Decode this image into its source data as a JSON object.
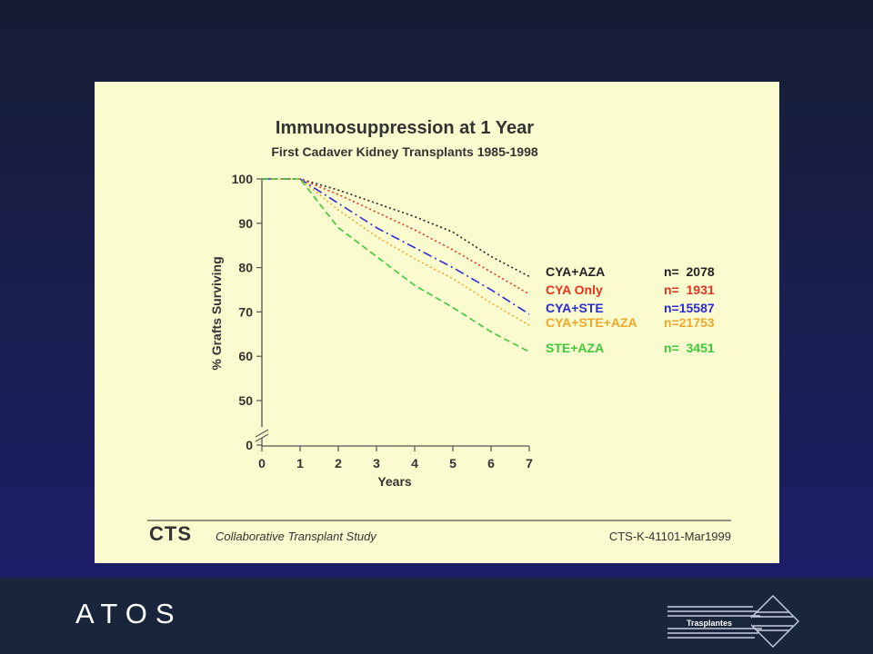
{
  "slide": {
    "brand": "ATOS",
    "logo_text": "Trasplantes"
  },
  "colors": {
    "panel": "#fbfbd0",
    "footer": "#18253a",
    "text": "#333333"
  },
  "chart_data": {
    "type": "line",
    "title": "Immunosuppression at 1 Year",
    "subtitle": "First Cadaver Kidney Transplants 1985-1998",
    "xlabel": "Years",
    "ylabel": "% Grafts Surviving",
    "x_ticks": [
      "0",
      "1",
      "2",
      "3",
      "4",
      "5",
      "6",
      "7"
    ],
    "y_ticks": [
      "0",
      "50",
      "60",
      "70",
      "80",
      "90",
      "100"
    ],
    "xlim": [
      0,
      7
    ],
    "ylim": [
      50,
      100
    ],
    "y_axis_break": true,
    "grid": false,
    "legend_position": "right",
    "x": [
      0,
      1,
      2,
      3,
      4,
      5,
      6,
      7
    ],
    "series": [
      {
        "name": "CYA+AZA",
        "n_label": "n=  2078",
        "color": "#222222",
        "dash": "2,3",
        "values": [
          100,
          100,
          97.5,
          94.5,
          91.5,
          88,
          82.5,
          78
        ]
      },
      {
        "name": "CYA Only",
        "n_label": "n=  1931",
        "color": "#e8321e",
        "dash": "2,3",
        "values": [
          100,
          100,
          96.5,
          92.5,
          88.5,
          84,
          79,
          74
        ]
      },
      {
        "name": "CYA+STE",
        "n_label": "n=15587",
        "color": "#2b2bd6",
        "dash": "10,4,2,4",
        "values": [
          100,
          100,
          94.5,
          89,
          84.5,
          80,
          75,
          69.5
        ]
      },
      {
        "name": "CYA+STE+AZA",
        "n_label": "n=21753",
        "color": "#f0a82a",
        "dash": "2,3",
        "values": [
          100,
          100,
          93,
          87,
          82,
          77.5,
          72,
          67
        ]
      },
      {
        "name": "STE+AZA",
        "n_label": "n=  3451",
        "color": "#3ec83a",
        "dash": "7,4",
        "values": [
          100,
          100,
          89,
          82.5,
          76,
          71,
          65.5,
          61
        ]
      }
    ]
  },
  "source": {
    "brand": "CTS",
    "name": "Collaborative Transplant Study",
    "code": "CTS-K-41101-Mar1999"
  }
}
